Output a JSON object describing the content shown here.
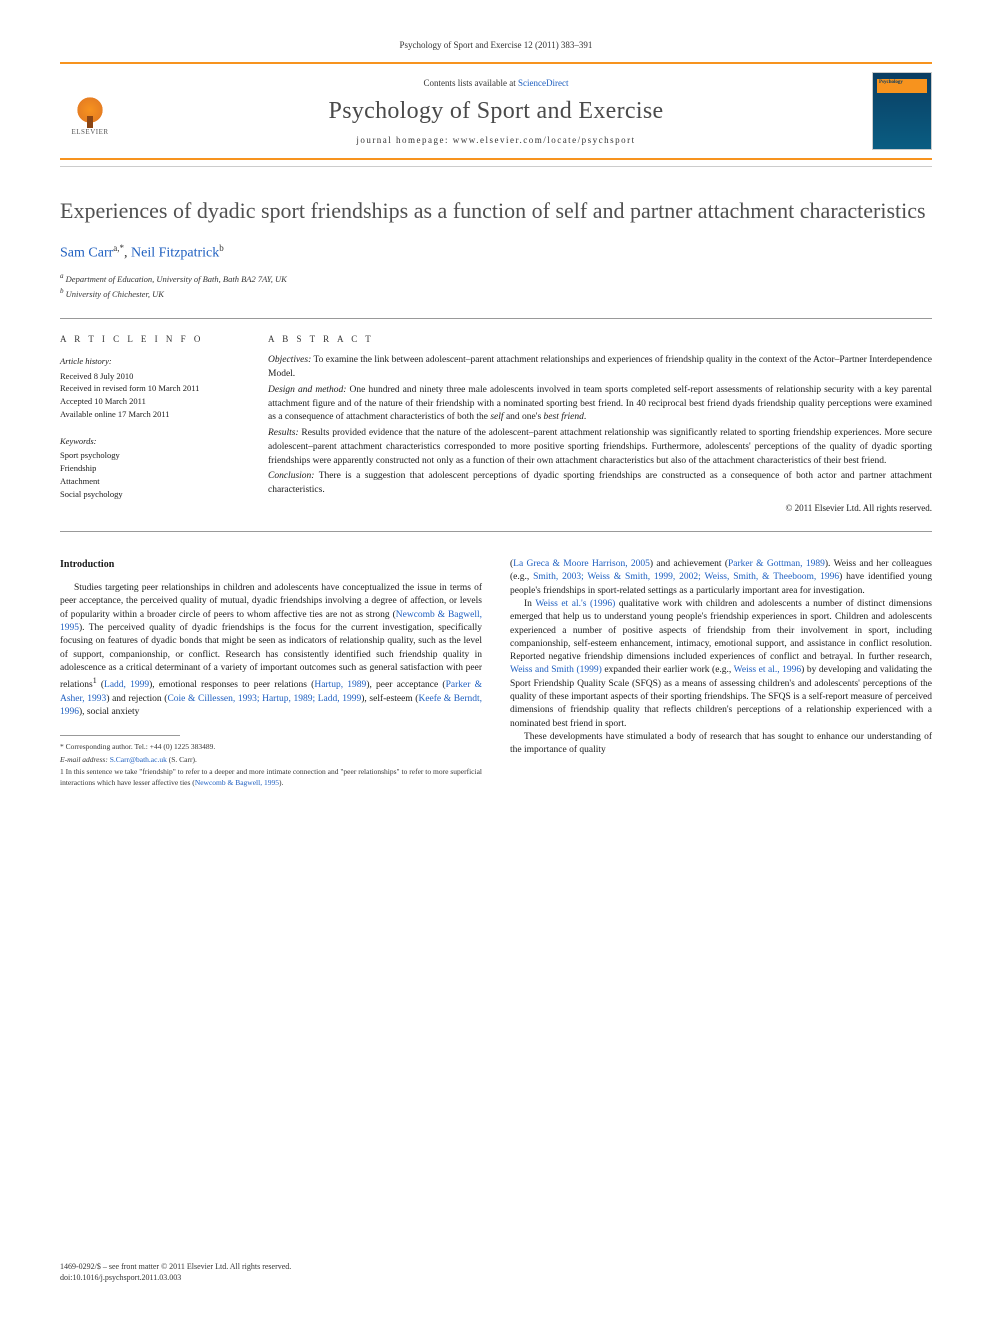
{
  "journal_ref": "Psychology of Sport and Exercise 12 (2011) 383–391",
  "header": {
    "contents_prefix": "Contents lists available at ",
    "contents_link": "ScienceDirect",
    "journal_name": "Psychology of Sport and Exercise",
    "homepage_prefix": "journal homepage: ",
    "homepage_url": "www.elsevier.com/locate/psychsport",
    "publisher": "ELSEVIER",
    "cover_label": "Psychology"
  },
  "title": "Experiences of dyadic sport friendships as a function of self and partner attachment characteristics",
  "authors": {
    "a1_name": "Sam Carr",
    "a1_marks": "a,*",
    "a2_name": "Neil Fitzpatrick",
    "a2_marks": "b"
  },
  "affiliations": {
    "a": "Department of Education, University of Bath, Bath BA2 7AY, UK",
    "b": "University of Chichester, UK"
  },
  "article_info": {
    "label": "A R T I C L E   I N F O",
    "history_title": "Article history:",
    "received": "Received 8 July 2010",
    "revised": "Received in revised form 10 March 2011",
    "accepted": "Accepted 10 March 2011",
    "online": "Available online 17 March 2011",
    "keywords_title": "Keywords:",
    "kw1": "Sport psychology",
    "kw2": "Friendship",
    "kw3": "Attachment",
    "kw4": "Social psychology"
  },
  "abstract": {
    "label": "A B S T R A C T",
    "objectives": "Objectives: To examine the link between adolescent–parent attachment relationships and experiences of friendship quality in the context of the Actor–Partner Interdependence Model.",
    "design": "Design and method: One hundred and ninety three male adolescents involved in team sports completed self-report assessments of relationship security with a key parental attachment figure and of the nature of their friendship with a nominated sporting best friend. In 40 reciprocal best friend dyads friendship quality perceptions were examined as a consequence of attachment characteristics of both the self and one's best friend.",
    "results": "Results: Results provided evidence that the nature of the adolescent–parent attachment relationship was significantly related to sporting friendship experiences. More secure adolescent–parent attachment characteristics corresponded to more positive sporting friendships. Furthermore, adolescents' perceptions of the quality of dyadic sporting friendships were apparently constructed not only as a function of their own attachment characteristics but also of the attachment characteristics of their best friend.",
    "conclusion": "Conclusion: There is a suggestion that adolescent perceptions of dyadic sporting friendships are constructed as a consequence of both actor and partner attachment characteristics.",
    "copyright": "© 2011 Elsevier Ltd. All rights reserved."
  },
  "body": {
    "intro_heading": "Introduction",
    "col1_p1a": "Studies targeting peer relationships in children and adolescents have conceptualized the issue in terms of peer acceptance, the perceived quality of mutual, dyadic friendships involving a degree of affection, or levels of popularity within a broader circle of peers to whom affective ties are not as strong (",
    "col1_r1": "Newcomb & Bagwell, 1995",
    "col1_p1b": "). The perceived quality of dyadic friendships is the focus for the current investigation, specifically focusing on features of dyadic bonds that might be seen as indicators of relationship quality, such as the level of support, companionship, or conflict. Research has consistently identified such friendship quality in adolescence as a critical determinant of a variety of important outcomes such as general satisfaction with peer relations",
    "col1_fn1": "1",
    "col1_p1c": " (",
    "col1_r2": "Ladd, 1999",
    "col1_p1d": "), emotional responses to peer relations (",
    "col1_r3": "Hartup, 1989",
    "col1_p1e": "), peer acceptance (",
    "col1_r4": "Parker & Asher, 1993",
    "col1_p1f": ") and rejection (",
    "col1_r5": "Coie & Cillessen, 1993; Hartup, 1989; Ladd, 1999",
    "col1_p1g": "), self-esteem (",
    "col1_r6": "Keefe & Berndt, 1996",
    "col1_p1h": "), social anxiety",
    "col2_p1a": "(",
    "col2_r1": "La Greca & Moore Harrison, 2005",
    "col2_p1b": ") and achievement (",
    "col2_r2": "Parker & Gottman, 1989",
    "col2_p1c": "). Weiss and her colleagues (e.g., ",
    "col2_r3": "Smith, 2003; Weiss & Smith, 1999, 2002; Weiss, Smith, & Theeboom, 1996",
    "col2_p1d": ") have identified young people's friendships in sport-related settings as a particularly important area for investigation.",
    "col2_p2a": "In ",
    "col2_r4": "Weiss et al.'s (1996)",
    "col2_p2b": " qualitative work with children and adolescents a number of distinct dimensions emerged that help us to understand young people's friendship experiences in sport. Children and adolescents experienced a number of positive aspects of friendship from their involvement in sport, including companionship, self-esteem enhancement, intimacy, emotional support, and assistance in conflict resolution. Reported negative friendship dimensions included experiences of conflict and betrayal. In further research, ",
    "col2_r5": "Weiss and Smith (1999)",
    "col2_p2c": " expanded their earlier work (e.g., ",
    "col2_r6": "Weiss et al., 1996",
    "col2_p2d": ") by developing and validating the Sport Friendship Quality Scale (SFQS) as a means of assessing children's and adolescents' perceptions of the quality of these important aspects of their sporting friendships. The SFQS is a self-report measure of perceived dimensions of friendship quality that reflects children's perceptions of a relationship experienced with a nominated best friend in sport.",
    "col2_p3": "These developments have stimulated a body of research that has sought to enhance our understanding of the importance of quality"
  },
  "footnotes": {
    "corr": "* Corresponding author. Tel.: +44 (0) 1225 383489.",
    "email_label": "E-mail address: ",
    "email": "S.Carr@bath.ac.uk",
    "email_suffix": " (S. Carr).",
    "fn1": "1 In this sentence we take \"friendship\" to refer to a deeper and more intimate connection and \"peer relationships\" to refer to more superficial interactions which have lesser affective ties (",
    "fn1_ref": "Newcomb & Bagwell, 1995",
    "fn1_end": ")."
  },
  "footer": {
    "line1": "1469-0292/$ – see front matter © 2011 Elsevier Ltd. All rights reserved.",
    "line2": "doi:10.1016/j.psychsport.2011.03.003"
  },
  "colors": {
    "accent": "#f7931e",
    "link": "#2060c0",
    "title_gray": "#505050"
  }
}
